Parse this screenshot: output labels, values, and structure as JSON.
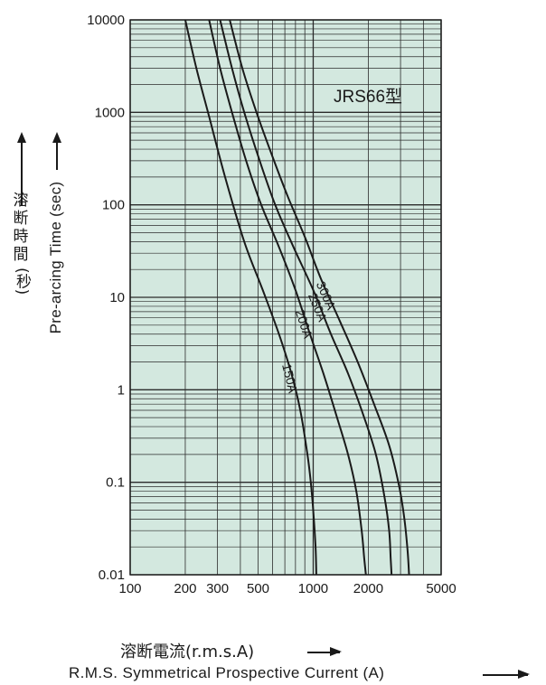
{
  "chart_data": {
    "type": "line",
    "model_label": "JRS66型",
    "xlabel_jp": "溶断電流(r.m.s.A)",
    "xlabel_en": "R.M.S. Symmetrical Prospective Current (A)",
    "ylabel_jp": [
      "溶",
      "断",
      "時",
      "間",
      "(秒)"
    ],
    "ylabel_en": "Pre-arcing Time (sec)",
    "x_scale": "log",
    "y_scale": "log",
    "xlim": [
      100,
      5000
    ],
    "ylim": [
      0.01,
      10000
    ],
    "x_ticks": [
      {
        "value": 100,
        "label": "100"
      },
      {
        "value": 200,
        "label": "200"
      },
      {
        "value": 300,
        "label": "300"
      },
      {
        "value": 500,
        "label": "500"
      },
      {
        "value": 1000,
        "label": "1000"
      },
      {
        "value": 2000,
        "label": "2000"
      },
      {
        "value": 5000,
        "label": "5000"
      }
    ],
    "y_ticks": [
      {
        "value": 0.01,
        "label": "0.01"
      },
      {
        "value": 0.1,
        "label": "0.1"
      },
      {
        "value": 1,
        "label": "1"
      },
      {
        "value": 10,
        "label": "10"
      },
      {
        "value": 100,
        "label": "100"
      },
      {
        "value": 1000,
        "label": "1000"
      },
      {
        "value": 10000,
        "label": "10000"
      }
    ],
    "grid": true,
    "background_color": "#d3e8df",
    "line_color": "#1a1a1a",
    "series": [
      {
        "name": "150A",
        "x": [
          200,
          230,
          270,
          330,
          420,
          530,
          650,
          760,
          850,
          930,
          970,
          1000,
          1030,
          1040
        ],
        "y": [
          10000,
          3000,
          900,
          200,
          40,
          12,
          4,
          1.5,
          0.6,
          0.2,
          0.1,
          0.05,
          0.02,
          0.01
        ]
      },
      {
        "name": "200A",
        "x": [
          270,
          310,
          360,
          430,
          520,
          650,
          800,
          960,
          1150,
          1350,
          1550,
          1720,
          1840,
          1900,
          1940
        ],
        "y": [
          10000,
          3000,
          1000,
          300,
          100,
          35,
          12,
          4,
          1.4,
          0.5,
          0.2,
          0.08,
          0.03,
          0.015,
          0.01
        ]
      },
      {
        "name": "250A",
        "x": [
          310,
          360,
          420,
          510,
          620,
          780,
          1000,
          1250,
          1550,
          1900,
          2200,
          2450,
          2600,
          2650,
          2680
        ],
        "y": [
          10000,
          3000,
          1000,
          300,
          100,
          35,
          12,
          4,
          1.5,
          0.5,
          0.2,
          0.07,
          0.03,
          0.015,
          0.01
        ]
      },
      {
        "name": "300A",
        "x": [
          350,
          410,
          490,
          600,
          730,
          900,
          1100,
          1400,
          1750,
          2150,
          2600,
          2950,
          3150,
          3280,
          3340
        ],
        "y": [
          10000,
          3000,
          1000,
          330,
          120,
          45,
          16,
          5.5,
          2,
          0.7,
          0.25,
          0.09,
          0.04,
          0.018,
          0.01
        ]
      }
    ]
  }
}
